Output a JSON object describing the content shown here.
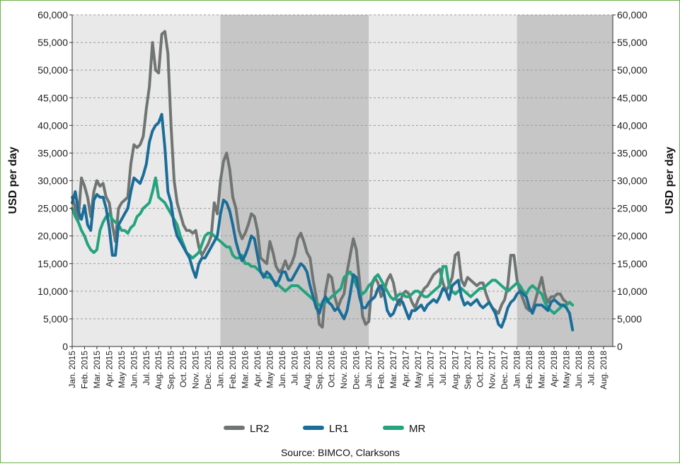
{
  "chart_data": {
    "type": "line",
    "ylabel_left": "USD per day",
    "ylabel_right": "USD per day",
    "ylim": [
      0,
      60000
    ],
    "y_ticks": [
      "0",
      "5,000",
      "10,000",
      "15,000",
      "20,000",
      "25,000",
      "30,000",
      "35,000",
      "40,000",
      "45,000",
      "50,000",
      "55,000",
      "60,000"
    ],
    "y_tick_values": [
      0,
      5000,
      10000,
      15000,
      20000,
      25000,
      30000,
      35000,
      40000,
      45000,
      50000,
      55000,
      60000
    ],
    "x_labels": [
      "Jan. 2015",
      "Feb. 2015",
      "Mar. 2015",
      "Apr. 2015",
      "May 2015",
      "Jun. 2015",
      "Jul. 2015",
      "Aug. 2015",
      "Sep. 2015",
      "Oct. 2015",
      "Nov. 2015",
      "Dec. 2015",
      "Jan. 2016",
      "Feb. 2016",
      "Mar. 2016",
      "Apr. 2016",
      "May 2016",
      "Jun. 2016",
      "Jul. 2016",
      "Aug. 2016",
      "Sep. 2016",
      "Oct. 2016",
      "Nov. 2016",
      "Dec. 2016",
      "Jan. 2017",
      "Feb. 2017",
      "Mar. 2017",
      "Apr. 2017",
      "May 2017",
      "Jun. 2017",
      "Jul. 2017",
      "Aug. 2017",
      "Sep. 2017",
      "Oct. 2017",
      "Nov. 2017",
      "Dec. 2017",
      "Jan. 2018",
      "Feb. 2018",
      "Mar. 2018",
      "Apr. 2018",
      "May 2018",
      "Jun. 2018",
      "Jul. 2018",
      "Aug. 2018"
    ],
    "shaded_periods": [
      {
        "start": "Jan. 2016",
        "end": "Jan. 2017"
      },
      {
        "start": "Jan. 2018",
        "end": "Aug. 2018"
      }
    ],
    "x_step_months": 0.25,
    "series": [
      {
        "name": "LR2",
        "color": "#6f7572",
        "values": [
          27000,
          25000,
          23000,
          30500,
          29000,
          27000,
          23500,
          28000,
          30000,
          29000,
          29500,
          27000,
          26000,
          22000,
          19000,
          25000,
          26000,
          26500,
          27000,
          33000,
          36500,
          36000,
          36500,
          38000,
          43000,
          47000,
          55000,
          50000,
          49500,
          56500,
          57000,
          53000,
          40000,
          30000,
          26000,
          24000,
          22000,
          21000,
          21000,
          20500,
          21000,
          18000,
          16500,
          17500,
          18500,
          20000,
          26000,
          24000,
          30000,
          33500,
          35000,
          32000,
          27000,
          25000,
          21000,
          19500,
          20500,
          22000,
          24000,
          23500,
          21000,
          16000,
          15500,
          15000,
          19000,
          17000,
          14500,
          13500,
          14000,
          15500,
          14000,
          15000,
          16500,
          19500,
          20500,
          19000,
          17000,
          16000,
          12000,
          9000,
          4000,
          3500,
          10000,
          13000,
          12500,
          9000,
          7000,
          8500,
          9500,
          13500,
          16500,
          19500,
          17500,
          12000,
          5500,
          4000,
          4500,
          11000,
          12500,
          11500,
          9000,
          10000,
          12000,
          13000,
          11500,
          8500,
          7500,
          9500,
          10000,
          9500,
          8000,
          7000,
          8500,
          9500,
          10500,
          11000,
          12000,
          13000,
          13500,
          14000,
          11500,
          10000,
          11000,
          12500,
          16500,
          17000,
          12000,
          11000,
          12500,
          12000,
          11500,
          11000,
          11500,
          11500,
          9500,
          8000,
          7000,
          6500,
          6000,
          7500,
          8500,
          11000,
          16500,
          16500,
          12000,
          10000,
          8500,
          7000,
          6500,
          6500,
          8500,
          10500,
          12500,
          9500,
          8000,
          9000,
          9000,
          9500,
          9500,
          8500,
          8000
        ]
      },
      {
        "name": "LR1",
        "color": "#1b6d99",
        "values": [
          26000,
          28000,
          24500,
          23000,
          25500,
          22000,
          21000,
          26500,
          27500,
          27000,
          27000,
          25000,
          21500,
          16500,
          16500,
          22000,
          23000,
          24000,
          25000,
          28000,
          30500,
          30000,
          29500,
          31000,
          33000,
          37000,
          39000,
          40000,
          40500,
          42000,
          36000,
          28000,
          26000,
          22000,
          20000,
          19000,
          18000,
          17000,
          16000,
          14000,
          12500,
          15000,
          16000,
          16000,
          17000,
          18000,
          19000,
          20000,
          24000,
          26500,
          26000,
          24500,
          22000,
          19000,
          17000,
          15500,
          16500,
          18000,
          20000,
          19500,
          16500,
          13500,
          12500,
          13500,
          13000,
          12000,
          11000,
          12000,
          13500,
          13500,
          12000,
          12000,
          13000,
          14000,
          15000,
          14500,
          13500,
          11000,
          9000,
          7000,
          6000,
          8000,
          9000,
          8000,
          7500,
          6500,
          7000,
          6000,
          5000,
          6500,
          9500,
          13000,
          12500,
          9000,
          7000,
          7000,
          8000,
          8500,
          9000,
          10500,
          11000,
          9500,
          6500,
          5500,
          6000,
          7500,
          8500,
          8000,
          6500,
          5000,
          6500,
          6500,
          7000,
          7500,
          6500,
          7500,
          8000,
          8500,
          8000,
          9000,
          10500,
          10000,
          8500,
          11000,
          11500,
          12000,
          9000,
          7500,
          8000,
          7500,
          8000,
          8500,
          7500,
          7000,
          7500,
          8000,
          7000,
          6000,
          4000,
          3500,
          5000,
          7000,
          8000,
          8500,
          9500,
          10000,
          9500,
          9000,
          7000,
          6000,
          7500,
          7500,
          7500,
          7000,
          6500,
          8000,
          8500,
          8000,
          7500,
          7500,
          7000,
          6000,
          3000
        ]
      },
      {
        "name": "MR",
        "color": "#24a37f",
        "values": [
          25000,
          23500,
          22500,
          21000,
          20000,
          18500,
          17500,
          17000,
          17500,
          21000,
          22500,
          23500,
          24000,
          23000,
          22500,
          22000,
          21000,
          21000,
          20500,
          21500,
          22000,
          23500,
          24000,
          25000,
          25500,
          26000,
          28000,
          30500,
          27000,
          26500,
          26000,
          25000,
          24000,
          23000,
          22000,
          20000,
          18500,
          17000,
          16500,
          16000,
          16500,
          17000,
          18500,
          20000,
          20500,
          20500,
          20000,
          19500,
          19000,
          18500,
          18000,
          18000,
          16500,
          16000,
          16000,
          16500,
          15000,
          15000,
          14500,
          14500,
          14000,
          13500,
          13000,
          12500,
          12500,
          12000,
          11500,
          11000,
          10500,
          10000,
          10500,
          11000,
          11000,
          11000,
          10500,
          10000,
          9500,
          9000,
          8500,
          8000,
          7500,
          7500,
          8000,
          8500,
          9000,
          9500,
          10000,
          10500,
          12500,
          13000,
          13500,
          12500,
          11000,
          10000,
          9500,
          10000,
          11000,
          11500,
          12500,
          13000,
          12000,
          11000,
          10000,
          9000,
          8500,
          9000,
          9500,
          9500,
          9000,
          9000,
          9500,
          10000,
          10000,
          9500,
          9000,
          9000,
          9500,
          10000,
          10500,
          11000,
          14500,
          14500,
          11000,
          10000,
          9500,
          10000,
          10500,
          10000,
          9500,
          9000,
          9500,
          10000,
          10500,
          10500,
          11000,
          11500,
          12000,
          12000,
          11500,
          11000,
          10500,
          10000,
          10500,
          11000,
          11500,
          11000,
          10000,
          9500,
          10500,
          11000,
          10500,
          10000,
          9500,
          8000,
          7000,
          6500,
          6000,
          6500,
          7000,
          7500,
          7500,
          8000,
          7500
        ]
      }
    ],
    "legend": {
      "placement": "bottom-center"
    },
    "grid": "horizontal-dashed"
  },
  "source": "Source: BIMCO, Clarksons"
}
